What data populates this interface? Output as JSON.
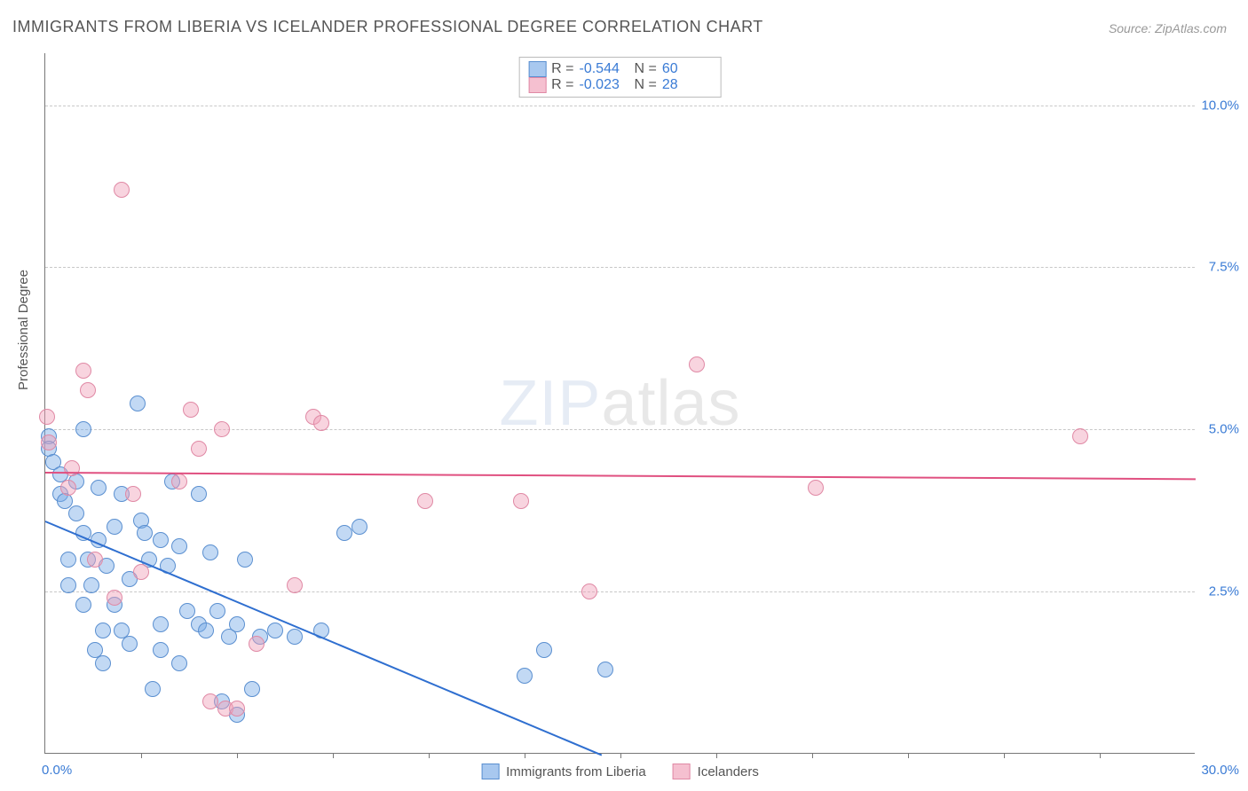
{
  "title": "IMMIGRANTS FROM LIBERIA VS ICELANDER PROFESSIONAL DEGREE CORRELATION CHART",
  "source": "Source: ZipAtlas.com",
  "ylabel": "Professional Degree",
  "watermark_zip": "ZIP",
  "watermark_atlas": "atlas",
  "chart": {
    "type": "scatter",
    "background_color": "#ffffff",
    "grid_color": "#c8c8c8",
    "axis_color": "#777777",
    "tick_label_color": "#3a7bd5",
    "xlim": [
      0,
      30
    ],
    "ylim": [
      0,
      10.8
    ],
    "x_tick_step": 2.5,
    "y_ticks": [
      2.5,
      5.0,
      7.5,
      10.0
    ],
    "y_tick_labels": [
      "2.5%",
      "5.0%",
      "7.5%",
      "10.0%"
    ],
    "x_origin_label": "0.0%",
    "x_max_label": "30.0%",
    "marker_radius": 9,
    "marker_stroke_width": 1
  },
  "series": [
    {
      "name": "Immigrants from Liberia",
      "fill": "rgba(120,170,230,0.45)",
      "stroke": "#5a8fd0",
      "swatch_fill": "#a8c8ef",
      "swatch_stroke": "#5a8fd0",
      "R": "-0.544",
      "N": "60",
      "trend": {
        "x1": 0,
        "y1": 3.6,
        "x2": 14.5,
        "y2": 0,
        "color": "#2f6fd0",
        "width": 2
      },
      "points": [
        [
          0.1,
          4.9
        ],
        [
          0.1,
          4.7
        ],
        [
          0.2,
          4.5
        ],
        [
          0.4,
          4.3
        ],
        [
          0.4,
          4.0
        ],
        [
          0.5,
          3.9
        ],
        [
          0.6,
          3.0
        ],
        [
          0.6,
          2.6
        ],
        [
          0.8,
          4.2
        ],
        [
          0.8,
          3.7
        ],
        [
          1.0,
          5.0
        ],
        [
          1.0,
          3.4
        ],
        [
          1.0,
          2.3
        ],
        [
          1.1,
          3.0
        ],
        [
          1.2,
          2.6
        ],
        [
          1.3,
          1.6
        ],
        [
          1.4,
          4.1
        ],
        [
          1.4,
          3.3
        ],
        [
          1.5,
          1.4
        ],
        [
          1.5,
          1.9
        ],
        [
          1.6,
          2.9
        ],
        [
          1.8,
          2.3
        ],
        [
          1.8,
          3.5
        ],
        [
          2.0,
          4.0
        ],
        [
          2.0,
          1.9
        ],
        [
          2.2,
          1.7
        ],
        [
          2.2,
          2.7
        ],
        [
          2.4,
          5.4
        ],
        [
          2.5,
          3.6
        ],
        [
          2.6,
          3.4
        ],
        [
          2.7,
          3.0
        ],
        [
          2.8,
          1.0
        ],
        [
          3.0,
          3.3
        ],
        [
          3.0,
          2.0
        ],
        [
          3.0,
          1.6
        ],
        [
          3.2,
          2.9
        ],
        [
          3.3,
          4.2
        ],
        [
          3.5,
          3.2
        ],
        [
          3.5,
          1.4
        ],
        [
          3.7,
          2.2
        ],
        [
          4.0,
          2.0
        ],
        [
          4.0,
          4.0
        ],
        [
          4.2,
          1.9
        ],
        [
          4.3,
          3.1
        ],
        [
          4.5,
          2.2
        ],
        [
          4.6,
          0.8
        ],
        [
          4.8,
          1.8
        ],
        [
          5.0,
          0.6
        ],
        [
          5.0,
          2.0
        ],
        [
          5.2,
          3.0
        ],
        [
          5.4,
          1.0
        ],
        [
          5.6,
          1.8
        ],
        [
          6.0,
          1.9
        ],
        [
          6.5,
          1.8
        ],
        [
          7.2,
          1.9
        ],
        [
          7.8,
          3.4
        ],
        [
          8.2,
          3.5
        ],
        [
          12.5,
          1.2
        ],
        [
          13.0,
          1.6
        ],
        [
          14.6,
          1.3
        ]
      ]
    },
    {
      "name": "Icelanders",
      "fill": "rgba(240,160,185,0.45)",
      "stroke": "#e089a5",
      "swatch_fill": "#f5c0d0",
      "swatch_stroke": "#e089a5",
      "R": "-0.023",
      "N": "28",
      "trend": {
        "x1": 0,
        "y1": 4.35,
        "x2": 30,
        "y2": 4.25,
        "color": "#e05080",
        "width": 2
      },
      "points": [
        [
          0.05,
          5.2
        ],
        [
          0.1,
          4.8
        ],
        [
          0.6,
          4.1
        ],
        [
          0.7,
          4.4
        ],
        [
          1.0,
          5.9
        ],
        [
          1.1,
          5.6
        ],
        [
          1.3,
          3.0
        ],
        [
          1.8,
          2.4
        ],
        [
          2.0,
          8.7
        ],
        [
          2.3,
          4.0
        ],
        [
          2.5,
          2.8
        ],
        [
          3.5,
          4.2
        ],
        [
          3.8,
          5.3
        ],
        [
          4.0,
          4.7
        ],
        [
          4.3,
          0.8
        ],
        [
          4.6,
          5.0
        ],
        [
          4.7,
          0.7
        ],
        [
          5.0,
          0.7
        ],
        [
          5.5,
          1.7
        ],
        [
          6.5,
          2.6
        ],
        [
          7.0,
          5.2
        ],
        [
          7.2,
          5.1
        ],
        [
          9.9,
          3.9
        ],
        [
          12.4,
          3.9
        ],
        [
          14.2,
          2.5
        ],
        [
          17.0,
          6.0
        ],
        [
          20.1,
          4.1
        ],
        [
          27.0,
          4.9
        ]
      ]
    }
  ],
  "stats_labels": {
    "R": "R =",
    "N": "N ="
  },
  "bottom_legend": [
    {
      "label": "Immigrants from Liberia",
      "fill": "#a8c8ef",
      "stroke": "#5a8fd0"
    },
    {
      "label": "Icelanders",
      "fill": "#f5c0d0",
      "stroke": "#e089a5"
    }
  ]
}
